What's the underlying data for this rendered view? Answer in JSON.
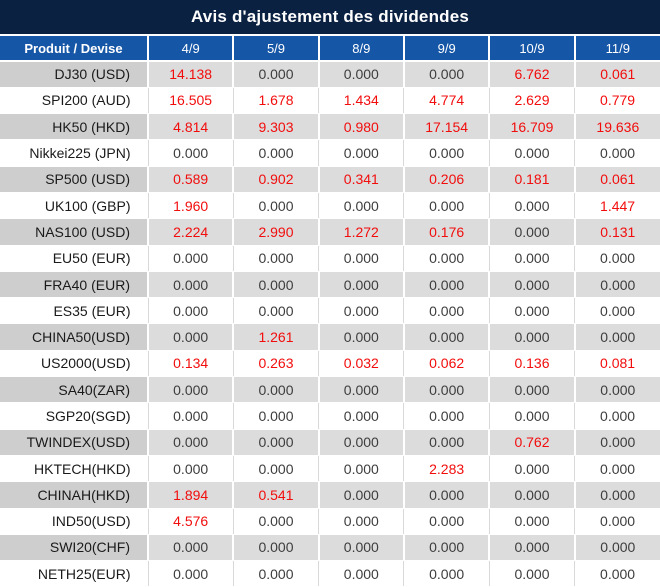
{
  "title_bar": {
    "title": "Avis d'ajustement des dividendes"
  },
  "colors": {
    "title_bg": "#0B2142",
    "header_bg": "#1656A6",
    "header_text": "#FFFFFF",
    "row_alt_bg": "#DCDCDC",
    "row_alt_product_bg": "#CFCECE",
    "row_bg": "#FFFFFF",
    "zero_value_text": "#3D3D3D",
    "nonzero_value_text": "#F20D0D",
    "product_text": "#1A1A1A"
  },
  "chart_data": {
    "type": "table",
    "title": "Avis d'ajustement des dividendes",
    "columns": [
      "Produit / Devise",
      "4/9",
      "5/9",
      "8/9",
      "9/9",
      "10/9",
      "11/9"
    ],
    "value_style_rule": "non-zero values rendered in red, zeros in dark gray",
    "rows": [
      {
        "product": "DJ30 (USD)",
        "values": [
          "14.138",
          "0.000",
          "0.000",
          "0.000",
          "6.762",
          "0.061"
        ]
      },
      {
        "product": "SPI200 (AUD)",
        "values": [
          "16.505",
          "1.678",
          "1.434",
          "4.774",
          "2.629",
          "0.779"
        ]
      },
      {
        "product": "HK50 (HKD)",
        "values": [
          "4.814",
          "9.303",
          "0.980",
          "17.154",
          "16.709",
          "19.636"
        ]
      },
      {
        "product": "Nikkei225 (JPN)",
        "values": [
          "0.000",
          "0.000",
          "0.000",
          "0.000",
          "0.000",
          "0.000"
        ]
      },
      {
        "product": "SP500 (USD)",
        "values": [
          "0.589",
          "0.902",
          "0.341",
          "0.206",
          "0.181",
          "0.061"
        ]
      },
      {
        "product": "UK100 (GBP)",
        "values": [
          "1.960",
          "0.000",
          "0.000",
          "0.000",
          "0.000",
          "1.447"
        ]
      },
      {
        "product": "NAS100 (USD)",
        "values": [
          "2.224",
          "2.990",
          "1.272",
          "0.176",
          "0.000",
          "0.131"
        ]
      },
      {
        "product": "EU50 (EUR)",
        "values": [
          "0.000",
          "0.000",
          "0.000",
          "0.000",
          "0.000",
          "0.000"
        ]
      },
      {
        "product": "FRA40 (EUR)",
        "values": [
          "0.000",
          "0.000",
          "0.000",
          "0.000",
          "0.000",
          "0.000"
        ]
      },
      {
        "product": "ES35 (EUR)",
        "values": [
          "0.000",
          "0.000",
          "0.000",
          "0.000",
          "0.000",
          "0.000"
        ]
      },
      {
        "product": "CHINA50(USD)",
        "values": [
          "0.000",
          "1.261",
          "0.000",
          "0.000",
          "0.000",
          "0.000"
        ]
      },
      {
        "product": "US2000(USD)",
        "values": [
          "0.134",
          "0.263",
          "0.032",
          "0.062",
          "0.136",
          "0.081"
        ]
      },
      {
        "product": "SA40(ZAR)",
        "values": [
          "0.000",
          "0.000",
          "0.000",
          "0.000",
          "0.000",
          "0.000"
        ]
      },
      {
        "product": "SGP20(SGD)",
        "values": [
          "0.000",
          "0.000",
          "0.000",
          "0.000",
          "0.000",
          "0.000"
        ]
      },
      {
        "product": "TWINDEX(USD)",
        "values": [
          "0.000",
          "0.000",
          "0.000",
          "0.000",
          "0.762",
          "0.000"
        ]
      },
      {
        "product": "HKTECH(HKD)",
        "values": [
          "0.000",
          "0.000",
          "0.000",
          "2.283",
          "0.000",
          "0.000"
        ]
      },
      {
        "product": "CHINAH(HKD)",
        "values": [
          "1.894",
          "0.541",
          "0.000",
          "0.000",
          "0.000",
          "0.000"
        ]
      },
      {
        "product": "IND50(USD)",
        "values": [
          "4.576",
          "0.000",
          "0.000",
          "0.000",
          "0.000",
          "0.000"
        ]
      },
      {
        "product": "SWI20(CHF)",
        "values": [
          "0.000",
          "0.000",
          "0.000",
          "0.000",
          "0.000",
          "0.000"
        ]
      },
      {
        "product": "NETH25(EUR)",
        "values": [
          "0.000",
          "0.000",
          "0.000",
          "0.000",
          "0.000",
          "0.000"
        ]
      }
    ]
  }
}
